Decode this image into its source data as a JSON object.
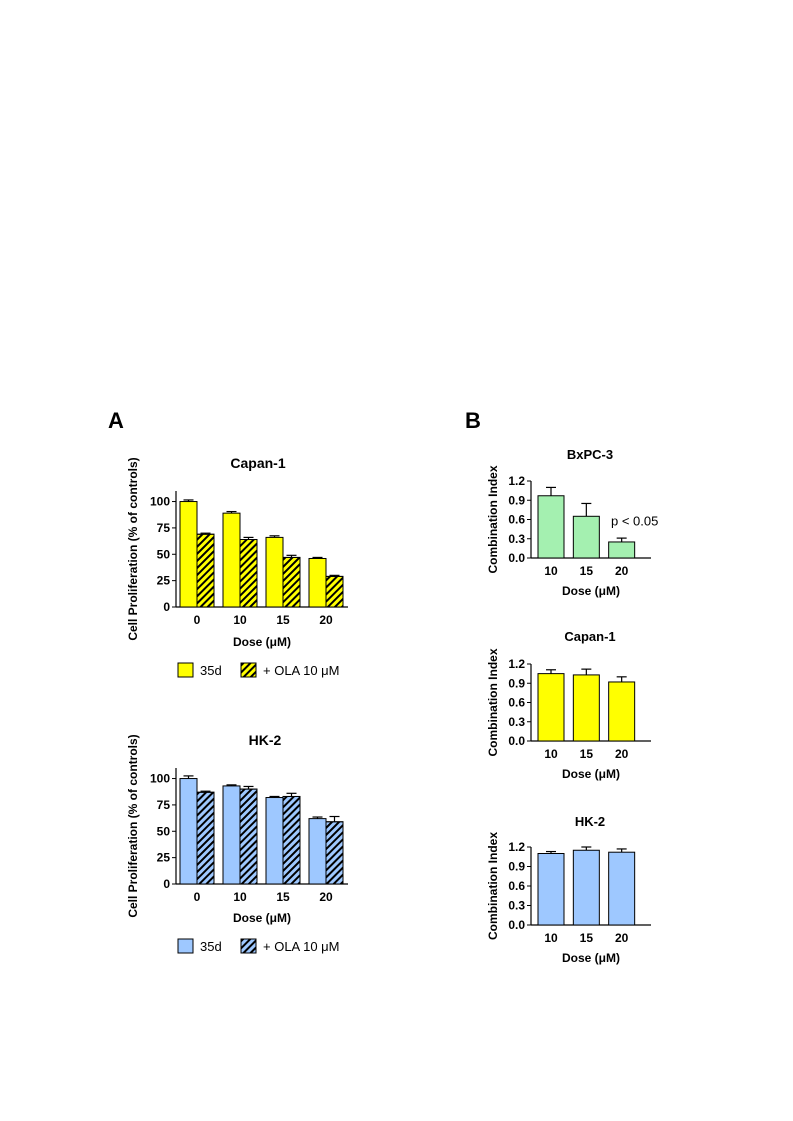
{
  "panel_labels": [
    "A",
    "B"
  ],
  "chart_data": [
    {
      "id": "A-capan1",
      "type": "bar",
      "title": "Capan-1",
      "xlabel": "Dose (μM)",
      "ylabel": "Cell Proliferation (% of controls)",
      "categories": [
        "0",
        "10",
        "15",
        "20"
      ],
      "ylim": [
        0,
        110
      ],
      "yticks": [
        "0",
        "25",
        "50",
        "75",
        "100"
      ],
      "series": [
        {
          "name": "35d",
          "values": [
            100,
            89,
            66,
            46
          ],
          "errors": [
            1.5,
            1.5,
            1.5,
            1
          ],
          "color": "#ffff00",
          "hatched": false
        },
        {
          "name": "+ OLA 10 μM",
          "values": [
            69,
            64,
            47,
            29
          ],
          "errors": [
            1,
            2,
            2,
            1
          ],
          "color": "#ffff00",
          "hatched": true
        }
      ],
      "legend": "bottom"
    },
    {
      "id": "A-hk2",
      "type": "bar",
      "title": "HK-2",
      "xlabel": "Dose (μM)",
      "ylabel": "Cell Proliferation (% of controls)",
      "categories": [
        "0",
        "10",
        "15",
        "20"
      ],
      "ylim": [
        0,
        110
      ],
      "yticks": [
        "0",
        "25",
        "50",
        "75",
        "100"
      ],
      "series": [
        {
          "name": "35d",
          "values": [
            100,
            93,
            82,
            62
          ],
          "errors": [
            2.5,
            1,
            1,
            1.5
          ],
          "color": "#9ec8ff",
          "hatched": false
        },
        {
          "name": "+ OLA 10 μM",
          "values": [
            87,
            90,
            83,
            59
          ],
          "errors": [
            1,
            2.5,
            3,
            5
          ],
          "color": "#9ec8ff",
          "hatched": true
        }
      ],
      "legend": "bottom"
    },
    {
      "id": "B-bxpc3",
      "type": "bar",
      "title": "BxPC-3",
      "xlabel": "Dose (μM)",
      "ylabel": "Combination Index",
      "categories": [
        "10",
        "15",
        "20"
      ],
      "ylim": [
        0,
        1.2
      ],
      "yticks": [
        "0.0",
        "0.3",
        "0.6",
        "0.9",
        "1.2"
      ],
      "series": [
        {
          "name": "",
          "values": [
            0.97,
            0.65,
            0.25
          ],
          "errors": [
            0.13,
            0.2,
            0.06
          ],
          "color": "#a4f0b0",
          "hatched": false
        }
      ],
      "annotation": {
        "text": "p < 0.05",
        "category_index": 2
      }
    },
    {
      "id": "B-capan1",
      "type": "bar",
      "title": "Capan-1",
      "xlabel": "Dose (μM)",
      "ylabel": "Combination Index",
      "categories": [
        "10",
        "15",
        "20"
      ],
      "ylim": [
        0,
        1.2
      ],
      "yticks": [
        "0.0",
        "0.3",
        "0.6",
        "0.9",
        "1.2"
      ],
      "series": [
        {
          "name": "",
          "values": [
            1.05,
            1.03,
            0.92
          ],
          "errors": [
            0.06,
            0.09,
            0.08
          ],
          "color": "#ffff00",
          "hatched": false
        }
      ]
    },
    {
      "id": "B-hk2",
      "type": "bar",
      "title": "HK-2",
      "xlabel": "Dose (μM)",
      "ylabel": "Combination Index",
      "categories": [
        "10",
        "15",
        "20"
      ],
      "ylim": [
        0,
        1.2
      ],
      "yticks": [
        "0.0",
        "0.3",
        "0.6",
        "0.9",
        "1.2"
      ],
      "series": [
        {
          "name": "",
          "values": [
            1.1,
            1.15,
            1.12
          ],
          "errors": [
            0.03,
            0.05,
            0.05
          ],
          "color": "#9ec8ff",
          "hatched": false
        }
      ]
    }
  ]
}
